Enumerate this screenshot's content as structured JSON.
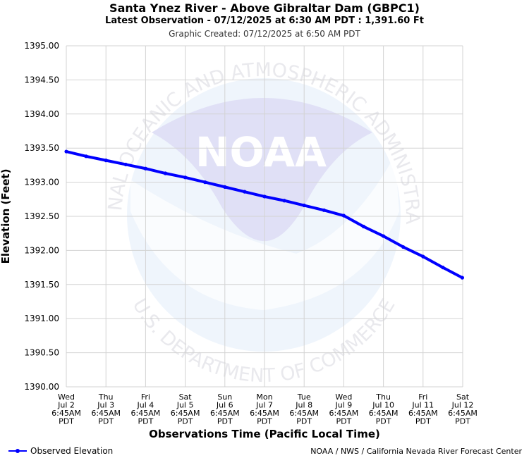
{
  "header": {
    "title": "Santa Ynez River - Above Gibraltar Dam (GBPC1)",
    "subtitle": "Latest Observation - 07/12/2025 at 6:30 AM PDT : 1,391.60 Ft",
    "created": "Graphic Created: 07/12/2025 at 6:50 AM PDT"
  },
  "watermark": {
    "arc_top": "NATIONAL OCEANIC AND ATMOSPHERIC ADMINISTRATION",
    "arc_bottom": "U.S. DEPARTMENT OF COMMERCE",
    "logo_text": "NOAA"
  },
  "legend": {
    "label": "Observed Elevation"
  },
  "credit": "NOAA / NWS / California Nevada River Forecast Center",
  "colors": {
    "series": "#0000ff",
    "grid": "#d3d3d3",
    "watermark": "#e8e8f8"
  },
  "chart_data": {
    "type": "line",
    "title": "Santa Ynez River - Above Gibraltar Dam (GBPC1)",
    "xlabel": "Observations Time (Pacific Local Time)",
    "ylabel": "Elevation (Feet)",
    "ylim": [
      1390.0,
      1395.0
    ],
    "yticks": [
      "1395.00",
      "1394.50",
      "1394.00",
      "1393.50",
      "1393.00",
      "1392.50",
      "1392.00",
      "1391.50",
      "1391.00",
      "1390.50",
      "1390.00"
    ],
    "xtick_labels": [
      [
        "Wed",
        "Jul 2",
        "6:45AM",
        "PDT"
      ],
      [
        "Thu",
        "Jul 3",
        "6:45AM",
        "PDT"
      ],
      [
        "Fri",
        "Jul 4",
        "6:45AM",
        "PDT"
      ],
      [
        "Sat",
        "Jul 5",
        "6:45AM",
        "PDT"
      ],
      [
        "Sun",
        "Jul 6",
        "6:45AM",
        "PDT"
      ],
      [
        "Mon",
        "Jul 7",
        "6:45AM",
        "PDT"
      ],
      [
        "Tue",
        "Jul 8",
        "6:45AM",
        "PDT"
      ],
      [
        "Wed",
        "Jul 9",
        "6:45AM",
        "PDT"
      ],
      [
        "Thu",
        "Jul 10",
        "6:45AM",
        "PDT"
      ],
      [
        "Fri",
        "Jul 11",
        "6:45AM",
        "PDT"
      ],
      [
        "Sat",
        "Jul 12",
        "6:45AM",
        "PDT"
      ]
    ],
    "grid": true,
    "legend_position": "bottom-left",
    "series": [
      {
        "name": "Observed Elevation",
        "x": [
          "2025-07-02 06:45",
          "2025-07-02 18:45",
          "2025-07-03 06:45",
          "2025-07-03 18:45",
          "2025-07-04 06:45",
          "2025-07-04 18:45",
          "2025-07-05 06:45",
          "2025-07-05 18:45",
          "2025-07-06 06:45",
          "2025-07-06 18:45",
          "2025-07-07 06:45",
          "2025-07-07 18:45",
          "2025-07-08 06:45",
          "2025-07-08 18:45",
          "2025-07-09 06:45",
          "2025-07-09 18:45",
          "2025-07-10 06:45",
          "2025-07-10 18:45",
          "2025-07-11 06:45",
          "2025-07-11 18:45",
          "2025-07-12 06:30"
        ],
        "values": [
          1393.45,
          1393.38,
          1393.32,
          1393.26,
          1393.2,
          1393.13,
          1393.07,
          1393.0,
          1392.93,
          1392.86,
          1392.79,
          1392.73,
          1392.66,
          1392.59,
          1392.51,
          1392.35,
          1392.21,
          1392.05,
          1391.91,
          1391.75,
          1391.6
        ]
      }
    ]
  }
}
